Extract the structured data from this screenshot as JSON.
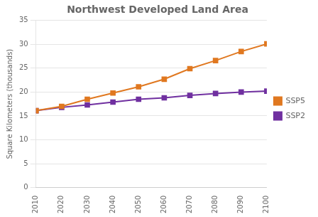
{
  "chart_data": {
    "type": "line",
    "title": "Northwest Developed Land Area",
    "ylabel": "Square Kilometers (thousands)",
    "x": [
      2010,
      2020,
      2030,
      2040,
      2050,
      2060,
      2070,
      2080,
      2090,
      2100
    ],
    "xlim": [
      2010,
      2100
    ],
    "xticks": [
      2010,
      2020,
      2030,
      2040,
      2050,
      2060,
      2070,
      2080,
      2090,
      2100
    ],
    "ylim": [
      0,
      35
    ],
    "yticks": [
      0,
      5,
      10,
      15,
      20,
      25,
      30,
      35
    ],
    "series": [
      {
        "name": "SSP5",
        "color": "#E07820",
        "marker": "square",
        "values": [
          16.1,
          17.0,
          18.5,
          19.8,
          21.1,
          22.7,
          24.9,
          26.6,
          28.5,
          30.1
        ]
      },
      {
        "name": "SSP2",
        "color": "#7030A0",
        "marker": "square",
        "values": [
          16.1,
          16.8,
          17.3,
          17.9,
          18.5,
          18.8,
          19.3,
          19.7,
          20.0,
          20.2
        ]
      }
    ],
    "grid": "y",
    "legend": "right"
  }
}
